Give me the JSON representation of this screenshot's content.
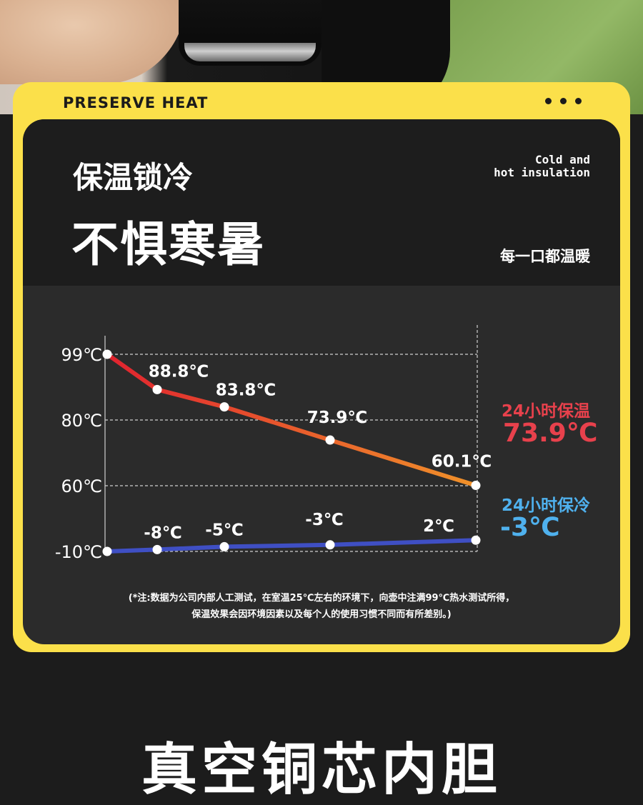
{
  "card": {
    "title": "PRESERVE HEAT",
    "headline_small": "保温锁冷",
    "headline_large": "不惧寒暑",
    "english": [
      "Cold and",
      "hot insulation"
    ],
    "tagline": "每一口都温暖"
  },
  "side_labels": {
    "hot_label": "24小时保温",
    "hot_value": "73.9℃",
    "cold_label": "24小时保冷",
    "cold_value": "-3℃"
  },
  "note": [
    "(*注:数据为公司内部人工测试，在室温25℃左右的环境下，向壶中注满99℃热水测试所得，",
    "保温效果会因环境因素以及每个人的使用习惯不同而有所差别。)"
  ],
  "bottom_title": "真空铜芯内胆",
  "colors": {
    "yellow": "#fbe04a",
    "hot_line": "#e8602a",
    "cold_line": "#3f4fc4",
    "hot_text": "#e8414c",
    "cold_text": "#4fb1ee"
  },
  "chart_data": {
    "type": "line",
    "y_ticks": [
      "99℃",
      "80℃",
      "60℃",
      "-10℃"
    ],
    "grid": "dashed",
    "series": [
      {
        "key": "hot",
        "values": [
          99,
          88.8,
          83.8,
          73.9,
          60.1
        ],
        "labels": [
          "",
          "88.8℃",
          "83.8℃",
          "73.9℃",
          "60.1℃"
        ]
      },
      {
        "key": "cold",
        "values": [
          -10,
          -8,
          -5,
          -3,
          2
        ],
        "labels": [
          "",
          "-8℃",
          "-5℃",
          "-3℃",
          "2℃"
        ]
      }
    ]
  }
}
